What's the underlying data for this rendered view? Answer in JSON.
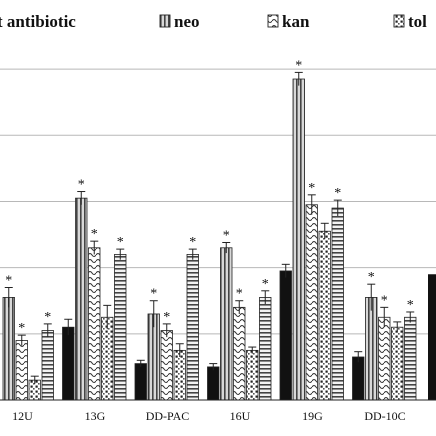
{
  "chart_data": {
    "type": "bar",
    "title": "",
    "xlabel": "",
    "ylabel": "",
    "grid": true,
    "legend_position": "top",
    "categories": [
      "12U",
      "13G",
      "DD-PAC",
      "16U",
      "19G",
      "DD-10C"
    ],
    "series": [
      {
        "name": "t antibiotic",
        "pattern": "solid",
        "color": "#111111",
        "values": [
          null,
          1.1,
          0.55,
          0.5,
          1.95,
          0.65
        ],
        "errors": [
          null,
          0.12,
          0.05,
          0.05,
          0.1,
          0.08
        ],
        "starred": [
          false,
          false,
          false,
          false,
          false,
          false
        ]
      },
      {
        "name": "neo",
        "pattern": "vertical-stripes",
        "color": "#cccccc",
        "values": [
          1.55,
          3.05,
          1.3,
          2.3,
          4.85,
          1.55
        ],
        "errors": [
          0.15,
          0.1,
          0.2,
          0.08,
          0.1,
          0.2
        ],
        "starred": [
          true,
          true,
          true,
          true,
          true,
          true
        ]
      },
      {
        "name": "kan",
        "pattern": "waves",
        "color": "#ffffff",
        "values": [
          0.9,
          2.3,
          1.05,
          1.4,
          2.95,
          1.25
        ],
        "errors": [
          0.08,
          0.1,
          0.1,
          0.1,
          0.15,
          0.15
        ],
        "starred": [
          true,
          true,
          true,
          true,
          true,
          true
        ]
      },
      {
        "name": "tob",
        "pattern": "dots",
        "color": "#ffffff",
        "values": [
          0.3,
          1.25,
          0.75,
          0.75,
          2.55,
          1.1
        ],
        "errors": [
          0.06,
          0.18,
          0.1,
          0.05,
          0.12,
          0.08
        ],
        "starred": [
          false,
          false,
          false,
          false,
          false,
          false
        ]
      },
      {
        "name": "",
        "pattern": "horizontal-stripes",
        "color": "#e0e0e0",
        "values": [
          1.05,
          2.2,
          2.2,
          1.55,
          2.9,
          1.25
        ],
        "errors": [
          0.1,
          0.08,
          0.08,
          0.1,
          0.12,
          0.08
        ],
        "starred": [
          true,
          true,
          true,
          true,
          true,
          true
        ]
      }
    ],
    "extra_bar_right": {
      "value": 1.9
    },
    "ylim": [
      0,
      5.5
    ],
    "gridlines": [
      1,
      2,
      3,
      4,
      5
    ],
    "legend": [
      {
        "label": "t antibiotic",
        "pattern": "solid"
      },
      {
        "label": "neo",
        "pattern": "vertical-stripes"
      },
      {
        "label": "kan",
        "pattern": "waves"
      },
      {
        "label": "tol",
        "pattern": "dots"
      }
    ],
    "star_symbol": "*"
  }
}
